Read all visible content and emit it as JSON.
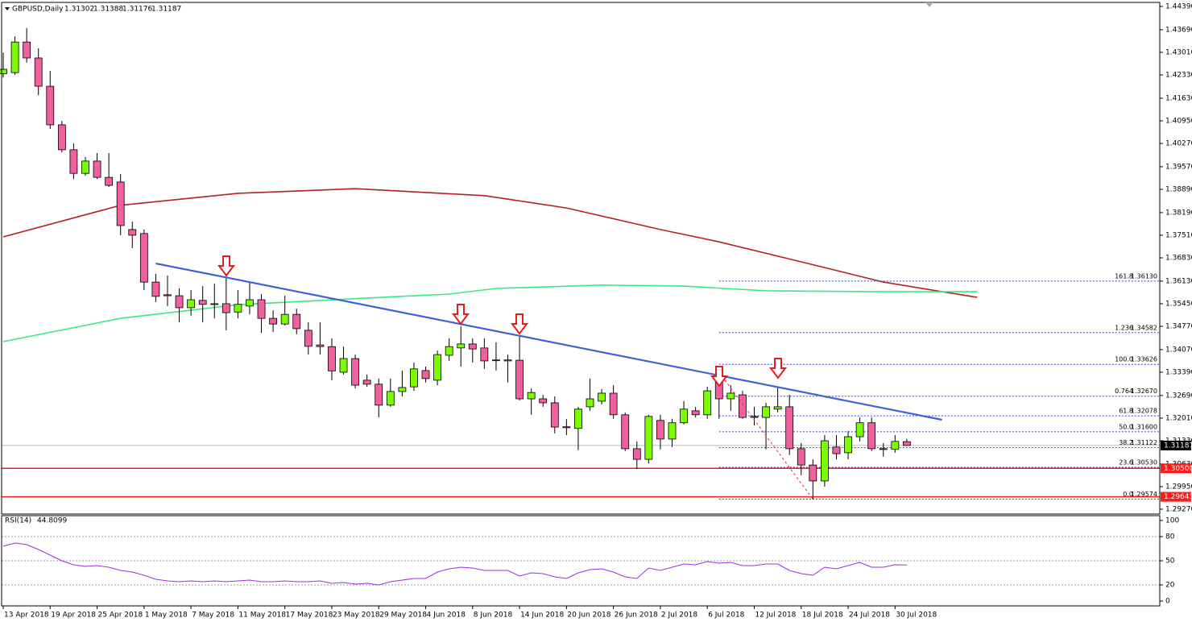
{
  "chart_data": {
    "type": "candlestick",
    "title": "GBPUSD,Daily",
    "bull_color": "#7cfc00",
    "bear_color": "#f0609f",
    "categories": [
      "13 Apr 2018",
      null,
      null,
      null,
      "19 Apr 2018",
      null,
      null,
      null,
      "25 Apr 2018",
      null,
      null,
      null,
      "1 May 2018",
      null,
      null,
      null,
      "7 May 2018",
      null,
      null,
      null,
      "11 May 2018",
      null,
      null,
      null,
      "17 May 2018",
      null,
      null,
      null,
      "23 May 2018",
      null,
      null,
      null,
      "29 May 2018",
      null,
      null,
      null,
      "4 Jun 2018",
      null,
      null,
      null,
      "8 Jun 2018",
      null,
      null,
      null,
      "14 Jun 2018",
      null,
      null,
      null,
      "20 Jun 2018",
      null,
      null,
      null,
      "26 Jun 2018",
      null,
      null,
      null,
      "2 Jul 2018",
      null,
      null,
      null,
      "6 Jul 2018",
      null,
      null,
      null,
      "12 Jul 2018",
      null,
      null,
      null,
      "18 Jul 2018",
      null,
      null,
      null,
      "24 Jul 2018",
      null,
      null,
      null,
      "30 Jul 2018",
      null
    ],
    "open": [
      1.4237,
      1.424,
      1.4332,
      1.4284,
      1.4199,
      1.4083,
      1.4008,
      1.3937,
      1.3974,
      1.3925,
      1.3911,
      1.3768,
      1.3756,
      1.361,
      1.3572,
      1.3569,
      1.3533,
      1.3555,
      1.3545,
      1.3545,
      1.352,
      1.3538,
      1.3557,
      1.3501,
      1.3484,
      1.3513,
      1.3465,
      1.3421,
      1.3416,
      1.3339,
      1.338,
      1.3315,
      1.3303,
      1.324,
      1.3281,
      1.3295,
      1.3344,
      1.3315,
      1.339,
      1.3412,
      1.3424,
      1.3412,
      1.3376,
      1.3376,
      1.3375,
      1.3259,
      1.3259,
      1.3247,
      1.3175,
      1.317,
      1.3235,
      1.3252,
      1.3276,
      1.3211,
      1.3109,
      1.3077,
      1.3194,
      1.3138,
      1.3187,
      1.3223,
      1.3211,
      1.332,
      1.3259,
      1.3271,
      1.3206,
      1.3203,
      1.3228,
      1.3235,
      1.3109,
      1.306,
      1.3012,
      1.3114,
      1.3097,
      1.3145,
      1.3187,
      1.3109,
      1.3107,
      1.31302
    ],
    "high": [
      1.43,
      1.4349,
      1.4374,
      1.4313,
      1.4245,
      1.4095,
      1.4027,
      1.3986,
      1.3998,
      1.3998,
      1.3935,
      1.3792,
      1.3768,
      1.3635,
      1.363,
      1.3591,
      1.3586,
      1.3598,
      1.3605,
      1.3622,
      1.3586,
      1.361,
      1.3574,
      1.3525,
      1.3569,
      1.353,
      1.3489,
      1.3489,
      1.3441,
      1.3416,
      1.3392,
      1.3332,
      1.332,
      1.332,
      1.3344,
      1.3368,
      1.3356,
      1.3404,
      1.3441,
      1.3477,
      1.3441,
      1.3441,
      1.3429,
      1.3392,
      1.3446,
      1.329,
      1.3271,
      1.3266,
      1.3198,
      1.3235,
      1.332,
      1.3288,
      1.33,
      1.3218,
      1.3131,
      1.3211,
      1.3211,
      1.3199,
      1.3252,
      1.3235,
      1.3295,
      1.3344,
      1.33,
      1.3283,
      1.3235,
      1.3247,
      1.3295,
      1.3271,
      1.3126,
      1.3077,
      1.315,
      1.315,
      1.3162,
      1.3203,
      1.3203,
      1.3126,
      1.315,
      1.31388
    ],
    "low": [
      1.4225,
      1.4233,
      1.427,
      1.4172,
      1.4071,
      1.4,
      1.392,
      1.393,
      1.392,
      1.3896,
      1.3751,
      1.3712,
      1.3586,
      1.355,
      1.3538,
      1.3489,
      1.3509,
      1.3489,
      1.3501,
      1.3465,
      1.3501,
      1.3513,
      1.3457,
      1.346,
      1.3479,
      1.3453,
      1.3392,
      1.3392,
      1.3315,
      1.3332,
      1.329,
      1.3295,
      1.3203,
      1.3235,
      1.3266,
      1.3283,
      1.3308,
      1.33,
      1.3373,
      1.3356,
      1.3368,
      1.3349,
      1.3344,
      1.3308,
      1.3254,
      1.3211,
      1.3235,
      1.3155,
      1.315,
      1.3105,
      1.3223,
      1.3242,
      1.3199,
      1.3102,
      1.3048,
      1.3065,
      1.3107,
      1.3114,
      1.3182,
      1.3203,
      1.3199,
      1.3199,
      1.3223,
      1.3199,
      1.3179,
      1.3107,
      1.3218,
      1.309,
      1.3029,
      1.2957,
      1.2995,
      1.3077,
      1.3077,
      1.3131,
      1.3102,
      1.3085,
      1.3097,
      1.31176
    ],
    "close": [
      1.425,
      1.4332,
      1.4284,
      1.4199,
      1.4083,
      1.4008,
      1.3937,
      1.3974,
      1.3925,
      1.3901,
      1.378,
      1.3751,
      1.361,
      1.3567,
      1.3569,
      1.3533,
      1.3557,
      1.3543,
      1.3543,
      1.3518,
      1.3543,
      1.3557,
      1.3501,
      1.3484,
      1.3513,
      1.347,
      1.3417,
      1.3416,
      1.3343,
      1.338,
      1.33,
      1.3303,
      1.324,
      1.3281,
      1.3293,
      1.3349,
      1.332,
      1.3392,
      1.3416,
      1.3424,
      1.3409,
      1.3373,
      1.3375,
      1.3373,
      1.3259,
      1.3278,
      1.3247,
      1.3174,
      1.3172,
      1.3228,
      1.3259,
      1.3276,
      1.3211,
      1.3109,
      1.3077,
      1.3206,
      1.3138,
      1.3187,
      1.3228,
      1.3211,
      1.3283,
      1.3259,
      1.3276,
      1.3203,
      1.3203,
      1.3235,
      1.3235,
      1.3109,
      1.306,
      1.3012,
      1.3133,
      1.3094,
      1.3145,
      1.3187,
      1.3109,
      1.3107,
      1.3131,
      1.31187
    ],
    "moving_averages": [
      {
        "color": "#b22222",
        "x": [
          0,
          10,
          20,
          30,
          41,
          48,
          56,
          61,
          68,
          75,
          83
        ],
        "values": [
          1.3746,
          1.3841,
          1.3877,
          1.3891,
          1.387,
          1.3833,
          1.3768,
          1.3731,
          1.3671,
          1.361,
          1.3564
        ]
      },
      {
        "color": "#3ce68c",
        "x": [
          0,
          10,
          20,
          31,
          38,
          42,
          51,
          58,
          65,
          75,
          83
        ],
        "values": [
          1.3431,
          1.3501,
          1.3542,
          1.3562,
          1.3574,
          1.3591,
          1.3601,
          1.3598,
          1.3584,
          1.3581,
          1.3581
        ]
      }
    ],
    "trendline": {
      "color": "#3f63d6",
      "x": [
        13,
        80
      ],
      "values": [
        1.3666,
        1.3196
      ]
    },
    "swing_line": {
      "color": "#e03030",
      "x": [
        61,
        69
      ],
      "values": [
        1.3339,
        1.2957
      ]
    },
    "fib_levels": [
      {
        "ratio": "161.8",
        "price": {
          "value": 1.3613,
          "label": "1.36130"
        }
      },
      {
        "ratio": "1.236",
        "price": {
          "value": 1.34582,
          "label": "1.34582"
        }
      },
      {
        "ratio": "100.0",
        "price": {
          "value": 1.33626,
          "label": "1.33626"
        }
      },
      {
        "ratio": "0.764",
        "price": {
          "value": 1.3267,
          "label": "1.32670"
        }
      },
      {
        "ratio": "61.8",
        "price": {
          "value": 1.32078,
          "label": "1.32078"
        }
      },
      {
        "ratio": "50.0",
        "price": {
          "value": 1.316,
          "label": "1.31600"
        }
      },
      {
        "ratio": "38.2",
        "price": {
          "value": 1.31122,
          "label": "1.31122"
        }
      },
      {
        "ratio": "23.6",
        "price": {
          "value": 1.3053,
          "label": "1.30530"
        }
      },
      {
        "ratio": "0.0",
        "price": {
          "value": 1.29574,
          "label": "1.29574"
        }
      }
    ],
    "fib_color": "#2a3fd0",
    "horizontal_lines": [
      {
        "value": 1.305,
        "label": "1.30500"
      },
      {
        "value": 1.29643,
        "label": "1.29643"
      }
    ],
    "horizontal_color": "#ff1a1a",
    "ylim": [
      1.29125,
      1.44511
    ],
    "yticks": [
      {
        "value": 1.4439,
        "label": "1.44390"
      },
      {
        "value": 1.4369,
        "label": "1.43690"
      },
      {
        "value": 1.4301,
        "label": "1.43010"
      },
      {
        "value": 1.4233,
        "label": "1.42330"
      },
      {
        "value": 1.4163,
        "label": "1.41630"
      },
      {
        "value": 1.4095,
        "label": "1.40950"
      },
      {
        "value": 1.4027,
        "label": "1.40270"
      },
      {
        "value": 1.3957,
        "label": "1.39570"
      },
      {
        "value": 1.3889,
        "label": "1.38890"
      },
      {
        "value": 1.3819,
        "label": "1.38190"
      },
      {
        "value": 1.3751,
        "label": "1.37510"
      },
      {
        "value": 1.3683,
        "label": "1.36830"
      },
      {
        "value": 1.3613,
        "label": "1.36130"
      },
      {
        "value": 1.3545,
        "label": "1.35450"
      },
      {
        "value": 1.3477,
        "label": "1.34770"
      },
      {
        "value": 1.3407,
        "label": "1.34070"
      },
      {
        "value": 1.3339,
        "label": "1.33390"
      },
      {
        "value": 1.3269,
        "label": "1.32690"
      },
      {
        "value": 1.3201,
        "label": "1.32010"
      },
      {
        "value": 1.3133,
        "label": "1.31330"
      },
      {
        "value": 1.3063,
        "label": "1.30630"
      },
      {
        "value": 1.2995,
        "label": "1.29950"
      },
      {
        "value": 1.2927,
        "label": "1.29270"
      }
    ],
    "rsi": {
      "name": "RSI(14)",
      "color": "#9b30d9",
      "ylim": [
        0,
        100
      ],
      "yticks": [
        100,
        80,
        50,
        20,
        0
      ],
      "levels": [
        80,
        50,
        20
      ],
      "values": [
        68,
        72,
        70,
        64,
        57,
        50,
        45,
        43,
        44,
        42,
        38,
        36,
        32,
        27,
        25,
        24,
        25,
        24,
        25,
        24,
        25,
        26,
        24,
        24,
        25,
        24,
        24,
        25,
        22,
        23,
        21,
        22,
        20,
        24,
        26,
        28,
        28,
        36,
        40,
        42,
        41,
        38,
        38,
        38,
        31,
        35,
        34,
        30,
        28,
        35,
        39,
        40,
        36,
        30,
        28,
        41,
        38,
        42,
        46,
        45,
        49,
        47,
        48,
        44,
        44,
        46,
        46,
        38,
        34,
        32,
        42,
        40,
        44,
        48,
        42,
        42,
        45,
        44.8099
      ]
    }
  }
}
